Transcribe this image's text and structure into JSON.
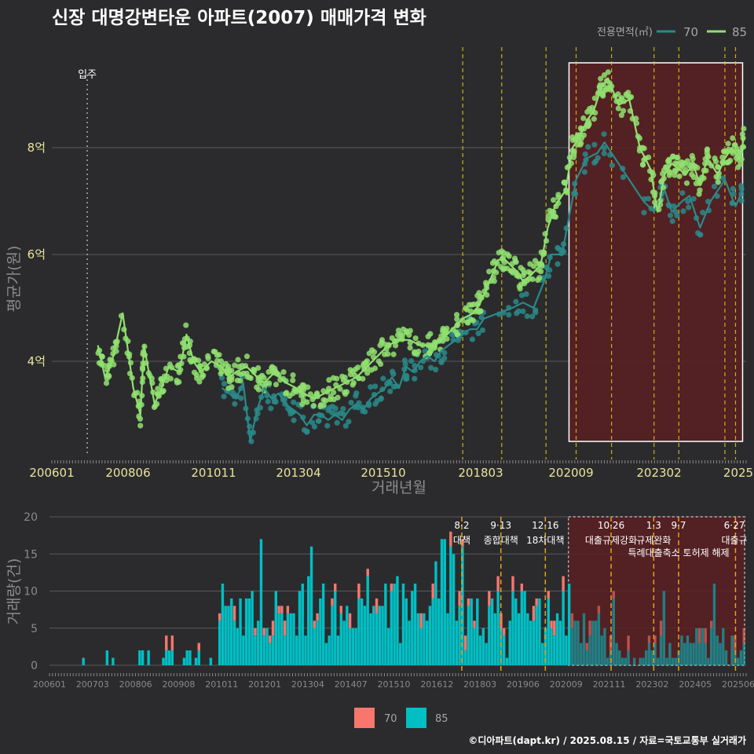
{
  "title": "신장 대명강변타운 아파트(2007) 매매가격 변화",
  "footer": "©디아파트(dapt.kr) / 2025.08.15 / 자료=국토교통부 실거래가",
  "colors": {
    "background": "#2b2b2d",
    "s70": "#2a8a8a",
    "s85": "#90e070",
    "bar70": "#f8766d",
    "bar85": "#00bfc4",
    "policy_line": "#e6c619",
    "highlight_fill": "#5a1e22"
  },
  "chart_data": [
    {
      "type": "line",
      "ylabel": "평균가(원)",
      "xlabel": "거래년월",
      "y_ticks": [
        {
          "value": 4,
          "label": "4억"
        },
        {
          "value": 6,
          "label": "6억"
        },
        {
          "value": 8,
          "label": "8억"
        }
      ],
      "x_ticks": [
        "200601",
        "200806",
        "201011",
        "201304",
        "201510",
        "201803",
        "202009",
        "202302",
        "2025"
      ],
      "ylim": [
        2.5,
        9.5
      ],
      "legend": {
        "title": "전용면적(㎡)",
        "items": [
          "70",
          "85"
        ],
        "position": "top-right"
      },
      "move_in_label": "입주",
      "move_in_x": 2007.0,
      "policy_lines": [
        2017.6,
        2018.7,
        2019.95,
        2020.8,
        2021.8,
        2023.0,
        2023.7,
        2025.0,
        2025.3
      ],
      "highlight": [
        2020.6,
        2025.5
      ],
      "series": [
        {
          "name": "70",
          "values": [
            [
              2010.8,
              3.5
            ],
            [
              2011.0,
              3.4
            ],
            [
              2011.2,
              3.3
            ],
            [
              2011.4,
              3.6
            ],
            [
              2011.6,
              2.5
            ],
            [
              2011.8,
              3.1
            ],
            [
              2012.0,
              3.5
            ],
            [
              2012.2,
              3.3
            ],
            [
              2012.4,
              3.4
            ],
            [
              2012.6,
              3.2
            ],
            [
              2012.8,
              3.1
            ],
            [
              2013.0,
              3.0
            ],
            [
              2013.2,
              2.8
            ],
            [
              2013.4,
              3.0
            ],
            [
              2013.6,
              3.0
            ],
            [
              2013.8,
              2.9
            ],
            [
              2014.0,
              3.0
            ],
            [
              2014.2,
              2.9
            ],
            [
              2014.4,
              3.1
            ],
            [
              2014.6,
              3.2
            ],
            [
              2014.8,
              3.1
            ],
            [
              2015.0,
              3.3
            ],
            [
              2015.2,
              3.4
            ],
            [
              2015.4,
              3.5
            ],
            [
              2015.6,
              3.7
            ],
            [
              2015.8,
              3.5
            ],
            [
              2016.0,
              3.9
            ],
            [
              2016.2,
              3.8
            ],
            [
              2016.4,
              4.0
            ],
            [
              2016.6,
              4.1
            ],
            [
              2016.8,
              4.0
            ],
            [
              2017.0,
              4.2
            ],
            [
              2017.2,
              4.3
            ],
            [
              2017.4,
              4.4
            ],
            [
              2017.6,
              4.5
            ],
            [
              2017.8,
              4.6
            ],
            [
              2018.0,
              4.6
            ],
            [
              2018.2,
              4.8
            ],
            [
              2019.0,
              5.0
            ],
            [
              2019.3,
              5.1
            ],
            [
              2019.6,
              5.0
            ],
            [
              2019.9,
              5.5
            ],
            [
              2020.1,
              6.0
            ],
            [
              2020.4,
              6.0
            ],
            [
              2020.6,
              6.7
            ],
            [
              2020.8,
              7.4
            ],
            [
              2021.1,
              7.8
            ],
            [
              2021.4,
              7.9
            ],
            [
              2021.6,
              8.1
            ],
            [
              2022.7,
              7.0
            ],
            [
              2023.0,
              6.8
            ],
            [
              2023.3,
              7.2
            ],
            [
              2023.5,
              6.8
            ],
            [
              2023.8,
              7.0
            ],
            [
              2024.0,
              7.1
            ],
            [
              2024.3,
              6.5
            ],
            [
              2024.6,
              7.0
            ],
            [
              2025.0,
              7.4
            ],
            [
              2025.3,
              6.9
            ],
            [
              2025.5,
              7.2
            ]
          ]
        },
        {
          "name": "85",
          "values": [
            [
              2007.3,
              4.3
            ],
            [
              2007.5,
              3.7
            ],
            [
              2007.7,
              4.0
            ],
            [
              2008.0,
              4.9
            ],
            [
              2008.3,
              3.5
            ],
            [
              2008.5,
              3.0
            ],
            [
              2008.6,
              4.3
            ],
            [
              2008.9,
              3.2
            ],
            [
              2009.1,
              3.5
            ],
            [
              2009.3,
              3.9
            ],
            [
              2009.6,
              3.8
            ],
            [
              2009.8,
              4.5
            ],
            [
              2010.0,
              4.0
            ],
            [
              2010.2,
              3.8
            ],
            [
              2010.5,
              4.0
            ],
            [
              2010.8,
              3.9
            ],
            [
              2011.0,
              3.7
            ],
            [
              2011.2,
              3.8
            ],
            [
              2011.5,
              3.9
            ],
            [
              2011.8,
              3.7
            ],
            [
              2012.0,
              3.6
            ],
            [
              2012.3,
              3.8
            ],
            [
              2012.6,
              3.6
            ],
            [
              2012.9,
              3.5
            ],
            [
              2013.1,
              3.4
            ],
            [
              2013.4,
              3.3
            ],
            [
              2013.7,
              3.4
            ],
            [
              2014.0,
              3.5
            ],
            [
              2014.3,
              3.6
            ],
            [
              2014.6,
              3.7
            ],
            [
              2014.9,
              3.9
            ],
            [
              2015.2,
              4.1
            ],
            [
              2015.5,
              4.3
            ],
            [
              2015.8,
              4.4
            ],
            [
              2016.1,
              4.4
            ],
            [
              2016.4,
              4.3
            ],
            [
              2016.7,
              4.3
            ],
            [
              2017.0,
              4.4
            ],
            [
              2017.3,
              4.6
            ],
            [
              2017.6,
              4.8
            ],
            [
              2017.9,
              4.9
            ],
            [
              2018.1,
              5.1
            ],
            [
              2018.3,
              5.4
            ],
            [
              2018.6,
              5.9
            ],
            [
              2018.8,
              5.9
            ],
            [
              2019.1,
              5.7
            ],
            [
              2019.3,
              5.5
            ],
            [
              2019.5,
              5.6
            ],
            [
              2019.8,
              5.8
            ],
            [
              2020.0,
              6.5
            ],
            [
              2020.2,
              6.9
            ],
            [
              2020.5,
              7.2
            ],
            [
              2020.7,
              8.0
            ],
            [
              2020.9,
              8.2
            ],
            [
              2021.1,
              8.5
            ],
            [
              2021.3,
              8.7
            ],
            [
              2021.5,
              9.1
            ],
            [
              2021.7,
              9.3
            ],
            [
              2022.0,
              8.8
            ],
            [
              2022.3,
              8.9
            ],
            [
              2022.6,
              8.0
            ],
            [
              2022.9,
              7.6
            ],
            [
              2023.1,
              6.8
            ],
            [
              2023.3,
              7.5
            ],
            [
              2023.5,
              7.7
            ],
            [
              2023.7,
              7.6
            ],
            [
              2023.9,
              7.5
            ],
            [
              2024.1,
              7.7
            ],
            [
              2024.3,
              7.3
            ],
            [
              2024.5,
              7.8
            ],
            [
              2024.8,
              7.5
            ],
            [
              2025.0,
              7.8
            ],
            [
              2025.2,
              8.0
            ],
            [
              2025.4,
              7.8
            ],
            [
              2025.55,
              8.2
            ]
          ]
        }
      ]
    },
    {
      "type": "bar",
      "ylabel": "거래량(건)",
      "y_ticks": [
        0,
        5,
        10,
        15,
        20
      ],
      "ylim": [
        0,
        20
      ],
      "x_ticks": [
        "200601",
        "200703",
        "200806",
        "200908",
        "201011",
        "201201",
        "201304",
        "201407",
        "201510",
        "201612",
        "201803",
        "201906",
        "202009",
        "202111",
        "202302",
        "202405",
        "202506"
      ],
      "legend": {
        "items": [
          "70",
          "85"
        ],
        "position": "bottom"
      },
      "policies": [
        {
          "date": "8·2",
          "name": "대책",
          "x": 2017.6
        },
        {
          "date": "9·13",
          "name": "종합대책",
          "x": 2018.7
        },
        {
          "date": "12·16",
          "name": "18차대책",
          "x": 2019.95
        },
        {
          "date": "10·26",
          "name": "대출규제강화",
          "x": 2021.8
        },
        {
          "date": "1·3",
          "name": "규제완화",
          "x": 2023.0
        },
        {
          "date": "9·7",
          "name": "특례대출축소 토허제 해제",
          "x": 2023.7
        },
        {
          "date": "6·27",
          "name": "대출규",
          "x": 2025.3
        }
      ],
      "highlight": [
        2020.6,
        2025.5
      ],
      "series": [
        {
          "name": "70",
          "values": []
        },
        {
          "name": "85",
          "values": []
        }
      ]
    }
  ]
}
